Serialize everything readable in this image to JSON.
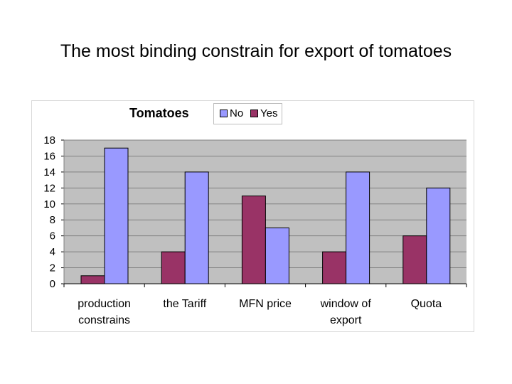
{
  "slide": {
    "title": "The most binding constrain for export of tomatoes"
  },
  "legend": {
    "no_label": "No",
    "yes_label": "Yes"
  },
  "colors": {
    "no": "#9999ff",
    "yes": "#993366",
    "plot_bg": "#c0c0c0",
    "grid": "#808080"
  },
  "chart_data": {
    "type": "bar",
    "title": "Tomatoes",
    "categories": [
      [
        "production",
        "constrains"
      ],
      [
        "the Tariff"
      ],
      [
        "MFN price"
      ],
      [
        "window of",
        "export"
      ],
      [
        "Quota"
      ]
    ],
    "series": [
      {
        "name": "Yes",
        "values": [
          1,
          4,
          11,
          4,
          6
        ]
      },
      {
        "name": "No",
        "values": [
          17,
          14,
          7,
          14,
          12
        ]
      }
    ],
    "ylim": [
      0,
      18
    ],
    "yticks": [
      0,
      2,
      4,
      6,
      8,
      10,
      12,
      14,
      16,
      18
    ],
    "grid": true,
    "legend_position": "top"
  }
}
